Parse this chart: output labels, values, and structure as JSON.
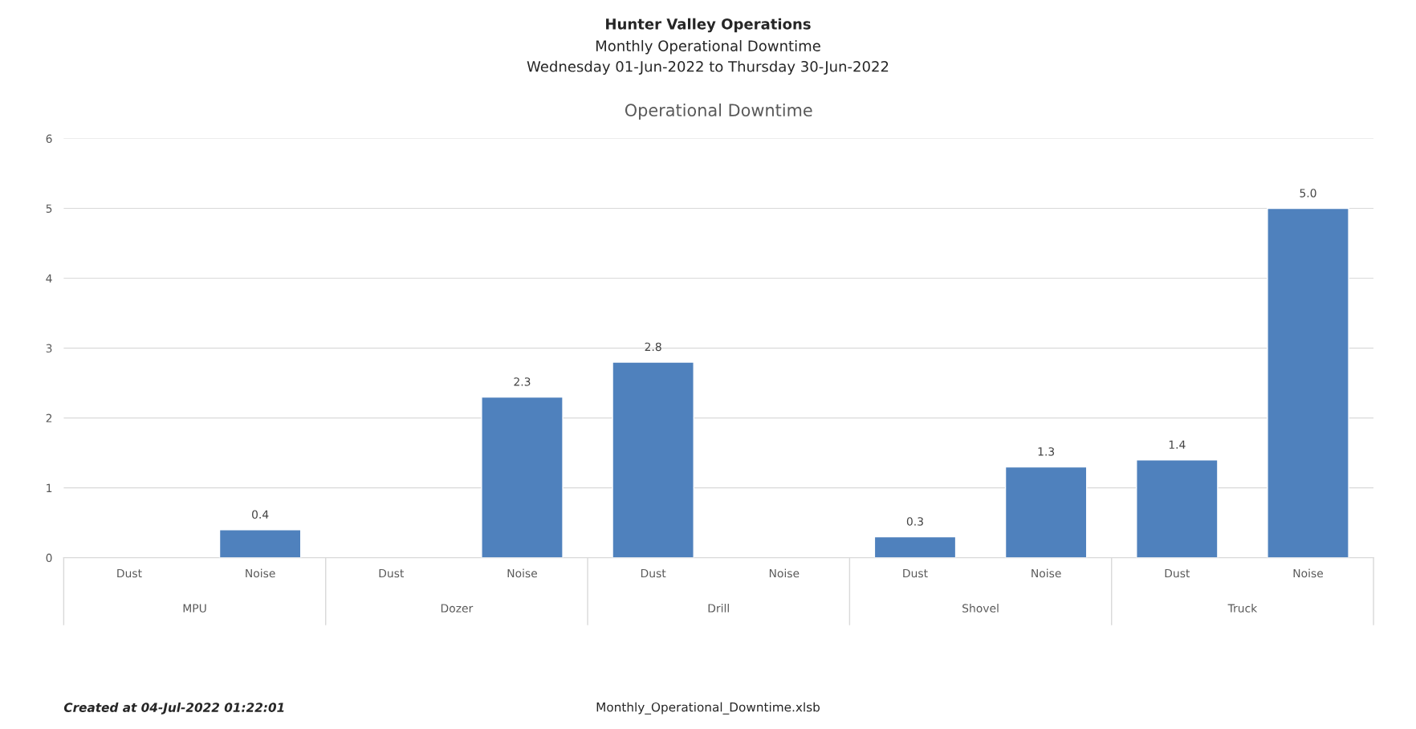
{
  "chart_data": [
    {
      "type": "other",
      "title": "Hunter Valley Operations",
      "subtitle": "Monthly Operational Downtime\nWednesday 01-Jun-2022 to Thursday 30-Jun-2022",
      "annotations": [
        "Created at 04-Jul-2022 01:22:01",
        "Monthly_Operational_Downtime.xlsb"
      ]
    },
    {
      "type": "bar",
      "title": "Operational Downtime",
      "categories": [
        "Dust",
        "Noise",
        "Dust",
        "Noise",
        "Dust",
        "Noise",
        "Dust",
        "Noise",
        "Dust",
        "Noise"
      ],
      "series": [
        {
          "color": "#4f81bd",
          "values": [
            null,
            0.4,
            null,
            2.3,
            2.8,
            null,
            0.3,
            1.3,
            1.4,
            5.0
          ],
          "value_labels": [
            null,
            "0.4",
            null,
            "2.3",
            "2.8",
            null,
            "0.3",
            "1.3",
            "1.4",
            "5.0"
          ]
        }
      ],
      "annotations": [
        "MPU",
        "Dozer",
        "Drill",
        "Shovel",
        "Truck"
      ],
      "ylim": [
        0,
        6
      ],
      "yticks": [
        0,
        1,
        2,
        3,
        4,
        5,
        6
      ],
      "grid": "y",
      "legend": false
    }
  ]
}
